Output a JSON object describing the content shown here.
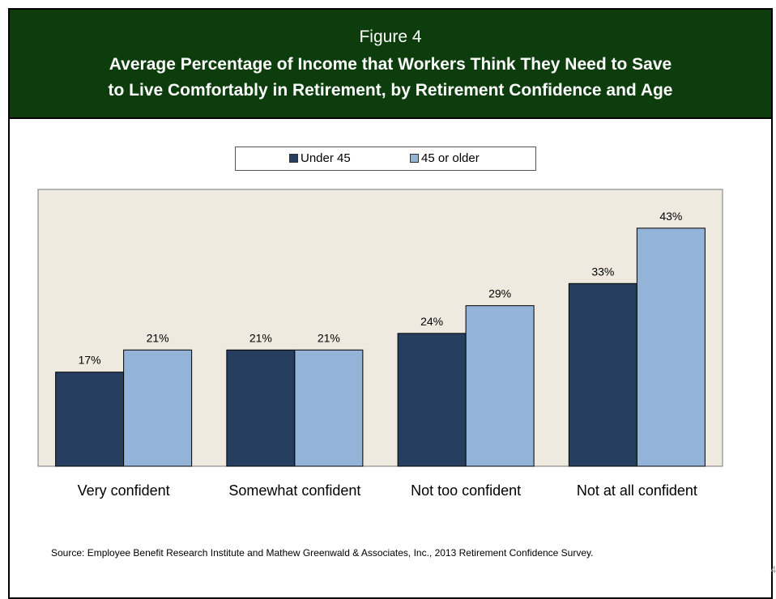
{
  "header": {
    "figure_label": "Figure 4",
    "title_line1": "Average Percentage of Income that Workers Think They Need to Save",
    "title_line2": "to Live Comfortably in Retirement, by Retirement Confidence and Age"
  },
  "source": "Source:  Employee Benefit Research Institute and Mathew Greenwald & Associates, Inc., 2013 Retirement Confidence Survey.",
  "page_number": "4",
  "colors": {
    "header_bg": "#0d3d0d",
    "plot_bg": "#eeeae0",
    "series_under45": "#263f61",
    "series_45older": "#94b3d9"
  },
  "chart_data": {
    "type": "bar",
    "categories": [
      "Very confident",
      "Somewhat confident",
      "Not too confident",
      "Not at all confident"
    ],
    "series": [
      {
        "name": "Under 45",
        "values": [
          17,
          21,
          24,
          33
        ],
        "labels": [
          "17%",
          "21%",
          "24%",
          "33%"
        ]
      },
      {
        "name": "45 or older",
        "values": [
          21,
          21,
          29,
          43
        ],
        "labels": [
          "21%",
          "21%",
          "29%",
          "43%"
        ]
      }
    ],
    "title": "",
    "xlabel": "",
    "ylabel": "",
    "ylim": [
      0,
      50
    ],
    "grid": false,
    "legend_position": "top-center"
  }
}
